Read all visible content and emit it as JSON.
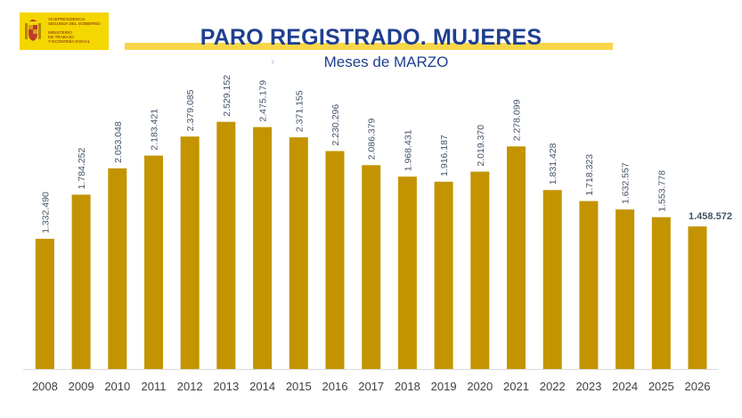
{
  "logo": {
    "line1": "VICEPRESIDENCIA\nSEGUNDA DEL GOBIERNO",
    "line2": "MINISTERIO\nDE TRABAJO\nY ECONOMÍA SOCIAL",
    "color": "#f4d600"
  },
  "header": {
    "title": "PARO REGISTRADO. MUJERES",
    "subtitle": "Meses de MARZO",
    "arrow": "›"
  },
  "chart_data": {
    "type": "bar",
    "title": "PARO REGISTRADO. MUJERES",
    "subtitle": "Meses de MARZO",
    "categories": [
      "2008",
      "2009",
      "2010",
      "2011",
      "2012",
      "2013",
      "2014",
      "2015",
      "2016",
      "2017",
      "2018",
      "2019",
      "2020",
      "2021",
      "2022",
      "2023",
      "2024",
      "2025",
      "2026"
    ],
    "values": [
      1332490,
      1784252,
      2053048,
      2183421,
      2379085,
      2529152,
      2475179,
      2371155,
      2230296,
      2086379,
      1968431,
      1916187,
      2019370,
      2278099,
      1831428,
      1718323,
      1632557,
      1553778,
      1458572
    ],
    "labels": [
      "1.332.490",
      "1.784.252",
      "2.053.048",
      "2.183.421",
      "2.379.085",
      "2.529.152",
      "2.475.179",
      "2.371.155",
      "2.230.296",
      "2.086.379",
      "1.968.431",
      "1.916.187",
      "2.019.370",
      "2.278.099",
      "1.831.428",
      "1.718.323",
      "1.632.557",
      "1.553.778",
      "1.458.572"
    ],
    "highlight_last": true,
    "ylim": [
      0,
      2700000
    ],
    "bar_color": "#c39400",
    "label_color": "#44546a",
    "axis_color": "#d9d9d9",
    "xlabel": "",
    "ylabel": ""
  }
}
